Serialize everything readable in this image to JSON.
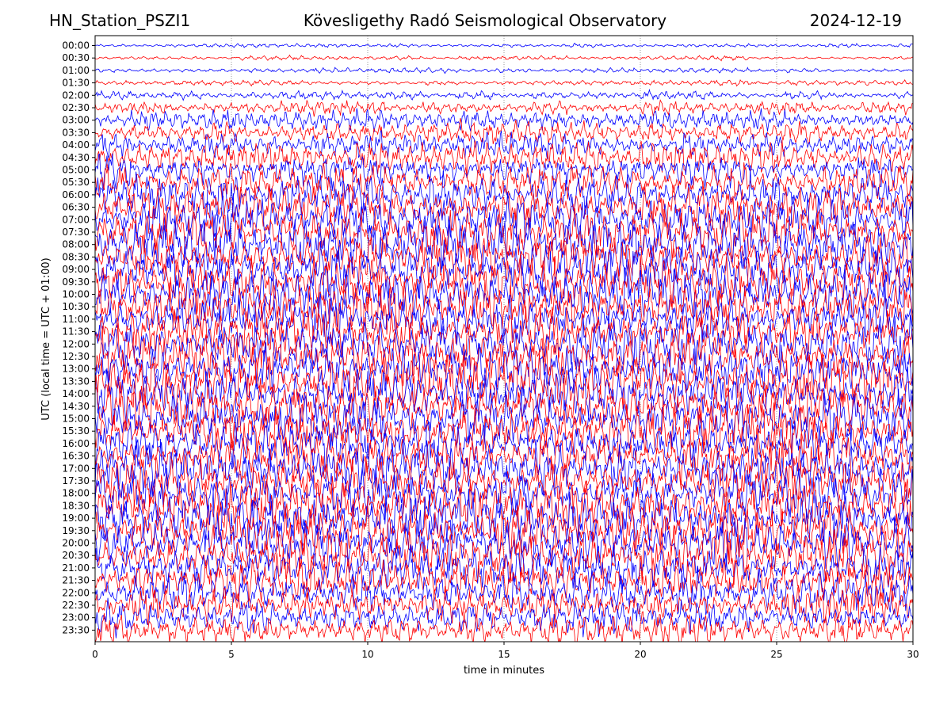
{
  "header": {
    "station": "HN_Station_PSZI1",
    "title": "Kövesligethy Radó Seismological Observatory",
    "date": "2024-12-19"
  },
  "chart_data": {
    "type": "line",
    "title": "Kövesligethy Radó Seismological Observatory",
    "xlabel": "time in minutes",
    "ylabel": "UTC (local time = UTC + 01:00)",
    "xlim": [
      0,
      30
    ],
    "x_ticks": [
      "0",
      "5",
      "10",
      "15",
      "20",
      "25",
      "30"
    ],
    "x_tick_values": [
      0,
      5,
      10,
      15,
      20,
      25,
      30
    ],
    "y_tick_labels": [
      "00:00",
      "00:30",
      "01:00",
      "01:30",
      "02:00",
      "02:30",
      "03:00",
      "03:30",
      "04:00",
      "04:30",
      "05:00",
      "05:30",
      "06:00",
      "06:30",
      "07:00",
      "07:30",
      "08:00",
      "08:30",
      "09:00",
      "09:30",
      "10:00",
      "10:30",
      "11:00",
      "11:30",
      "12:00",
      "12:30",
      "13:00",
      "13:30",
      "14:00",
      "14:30",
      "15:00",
      "15:30",
      "16:00",
      "16:30",
      "17:00",
      "17:30",
      "18:00",
      "18:30",
      "19:00",
      "19:30",
      "20:00",
      "20:30",
      "21:00",
      "21:30",
      "22:00",
      "22:30",
      "23:00",
      "23:30"
    ],
    "trace_colors": [
      "#0000ff",
      "#ff0000"
    ],
    "trace_amplitude_level": [
      0.25,
      0.25,
      0.3,
      0.35,
      0.5,
      0.8,
      1.2,
      1.4,
      1.6,
      1.8,
      2.0,
      2.2,
      2.4,
      2.6,
      2.8,
      2.9,
      3.0,
      3.0,
      3.0,
      3.0,
      3.0,
      3.0,
      3.0,
      3.0,
      3.0,
      3.0,
      3.0,
      3.0,
      3.0,
      3.0,
      3.0,
      3.0,
      3.0,
      3.0,
      3.0,
      3.0,
      3.0,
      3.0,
      3.0,
      3.0,
      3.0,
      3.0,
      2.8,
      2.6,
      2.4,
      2.2,
      2.0,
      2.0
    ],
    "grid": "vertical dotted at x ticks",
    "legend": "none"
  }
}
